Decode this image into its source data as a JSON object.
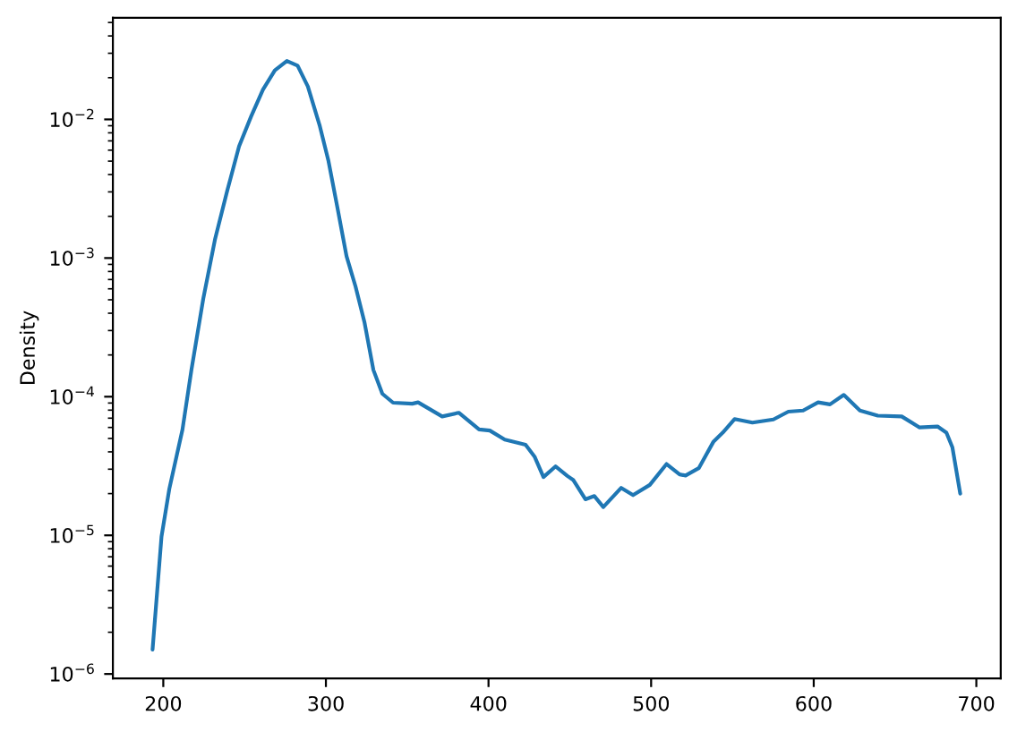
{
  "chart_data": {
    "type": "line",
    "ylabel": "Density",
    "log": "y",
    "grid": false,
    "marker": "none",
    "line_style": "solid",
    "xlim": [
      169,
      715
    ],
    "xticks": [
      200,
      300,
      400,
      500,
      600,
      700
    ],
    "ylim": [
      9.3e-07,
      0.054
    ],
    "yticks": [
      {
        "value": 1e-06,
        "label": "10$^{−6}$"
      },
      {
        "value": 1e-05,
        "label": "10$^{−5}$"
      },
      {
        "value": 0.0001,
        "label": "10$^{−4}$"
      },
      {
        "value": 0.001,
        "label": "10$^{−3}$"
      },
      {
        "value": 0.01,
        "label": "10$^{−2}$"
      }
    ],
    "series": [
      {
        "color": "#1f77b4",
        "x": [
          193.4,
          198.9,
          203.7,
          211.8,
          217.3,
          224.6,
          231.9,
          239.3,
          246.6,
          254,
          261.3,
          268.6,
          276,
          282.6,
          288.9,
          296.1,
          301.6,
          307.2,
          312.7,
          318.2,
          323.7,
          329.2,
          334.7,
          341.3,
          353.1,
          356.7,
          371.5,
          381.7,
          394.2,
          400.8,
          410,
          422.8,
          428.3,
          433.8,
          441.2,
          448.5,
          452.2,
          459.6,
          465.1,
          470.6,
          481.6,
          488.9,
          499.2,
          509.5,
          517.5,
          521.2,
          529.3,
          538.4,
          544,
          551.3,
          562.3,
          575.2,
          584.4,
          593.5,
          602.7,
          610,
          618.5,
          628.4,
          639.4,
          654.1,
          665.1,
          676.1,
          681.6,
          685.3,
          690.1
        ],
        "values": [
          1.5e-06,
          9.8e-06,
          2.16e-05,
          5.8e-05,
          0.000156,
          0.00051,
          0.00138,
          0.00305,
          0.0064,
          0.0105,
          0.0164,
          0.0226,
          0.0264,
          0.0244,
          0.0173,
          0.0091,
          0.005,
          0.00227,
          0.00103,
          0.000625,
          0.000345,
          0.000156,
          0.000105,
          9.05e-05,
          8.9e-05,
          9.1e-05,
          7.2e-05,
          7.66e-05,
          5.8e-05,
          5.7e-05,
          4.9e-05,
          4.5e-05,
          3.7e-05,
          2.63e-05,
          3.14e-05,
          2.68e-05,
          2.5e-05,
          1.82e-05,
          1.92e-05,
          1.6e-05,
          2.2e-05,
          1.95e-05,
          2.31e-05,
          3.27e-05,
          2.75e-05,
          2.7e-05,
          3.05e-05,
          4.75e-05,
          5.5e-05,
          6.9e-05,
          6.5e-05,
          6.85e-05,
          7.8e-05,
          7.95e-05,
          9.1e-05,
          8.8e-05,
          0.000103,
          7.95e-05,
          7.3e-05,
          7.2e-05,
          6e-05,
          6.1e-05,
          5.5e-05,
          4.3e-05,
          2e-05
        ]
      }
    ]
  }
}
